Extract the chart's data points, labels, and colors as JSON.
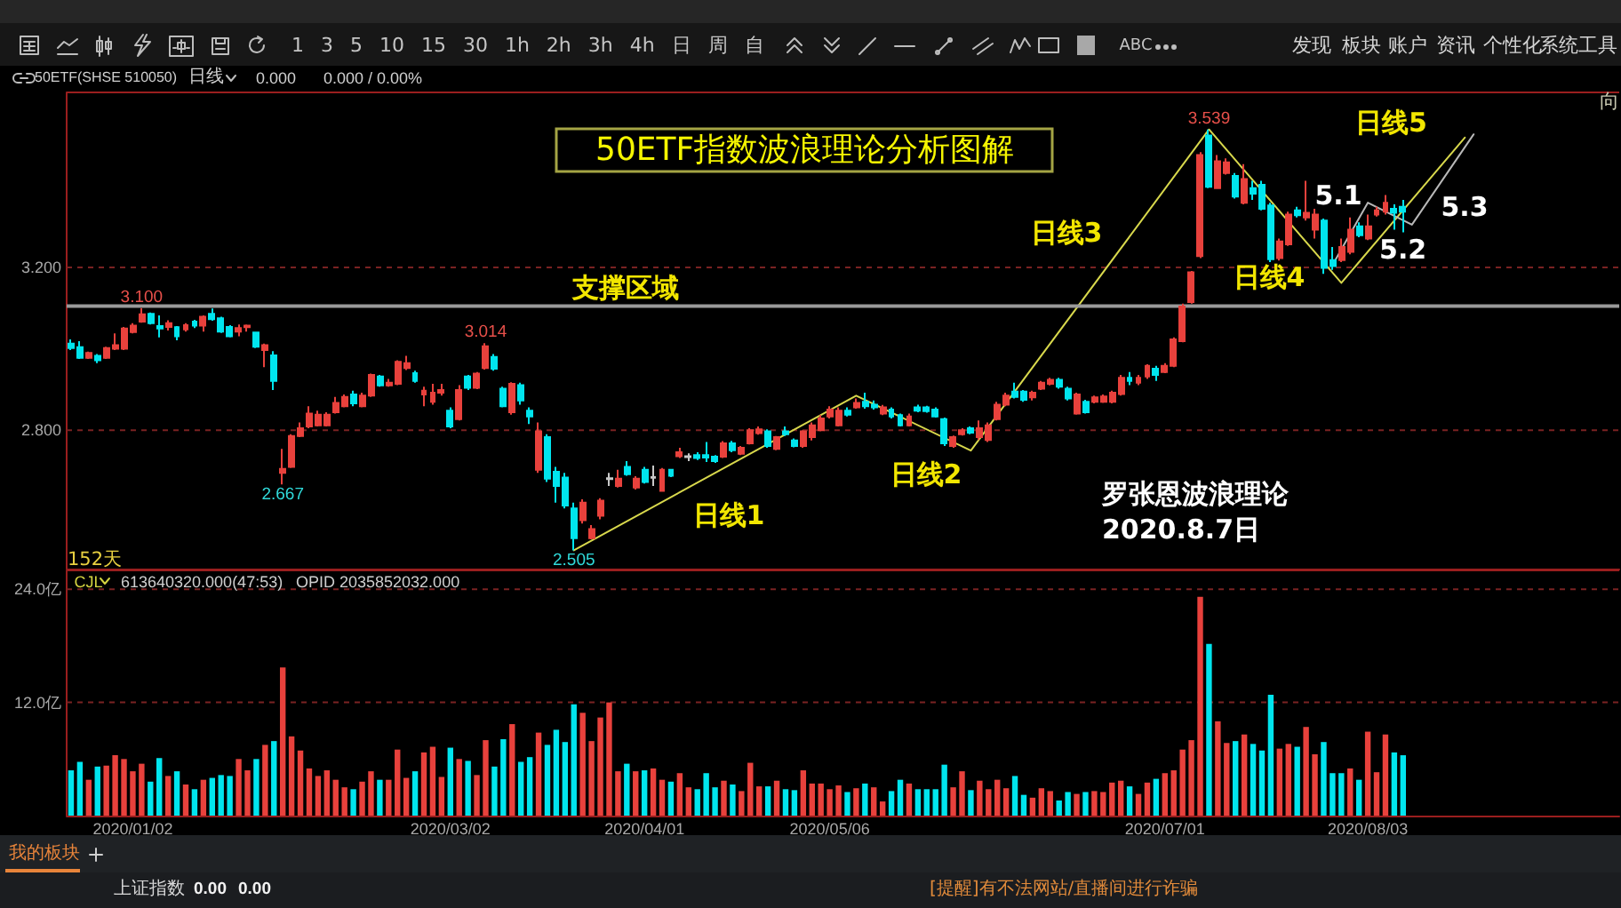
{
  "chart_data": [
    {
      "type": "candlestick",
      "title": "50ETF指数波浪理论分析图解",
      "categories": [
        null,
        null,
        null,
        null,
        null,
        null,
        null,
        "2020/01/02",
        null,
        null,
        null,
        null,
        null,
        null,
        null,
        null,
        null,
        null,
        null,
        null,
        null,
        null,
        null,
        null,
        null,
        null,
        null,
        null,
        null,
        null,
        null,
        null,
        null,
        null,
        null,
        null,
        null,
        null,
        null,
        null,
        null,
        null,
        null,
        "2020/03/02",
        null,
        null,
        null,
        null,
        null,
        null,
        null,
        null,
        null,
        null,
        null,
        null,
        null,
        null,
        null,
        null,
        null,
        null,
        null,
        null,
        null,
        "2020/04/01",
        null,
        null,
        null,
        null,
        null,
        null,
        null,
        null,
        null,
        null,
        null,
        null,
        null,
        null,
        null,
        null,
        null,
        null,
        null,
        null,
        "2020/05/06",
        null,
        null,
        null,
        null,
        null,
        null,
        null,
        null,
        null,
        null,
        null,
        null,
        null,
        null,
        null,
        null,
        null,
        null,
        null,
        null,
        null,
        null,
        null,
        null,
        null,
        null,
        null,
        null,
        null,
        null,
        null,
        null,
        null,
        null,
        null,
        null,
        null,
        "2020/07/01",
        null,
        null,
        null,
        null,
        null,
        null,
        null,
        null,
        null,
        null,
        null,
        null,
        null,
        null,
        null,
        null,
        null,
        null,
        null,
        null,
        null,
        null,
        "2020/08/03",
        null,
        null,
        null,
        null,
        null,
        null,
        null,
        null,
        null,
        null,
        null,
        null,
        null,
        null,
        null,
        null,
        null,
        null,
        null,
        null,
        null,
        null,
        null,
        null,
        null,
        null,
        null,
        null
      ],
      "ohlc": [
        [
          3.013,
          3.023,
          2.997,
          3.002
        ],
        [
          3.004,
          3.019,
          2.975,
          2.978
        ],
        [
          2.978,
          2.993,
          2.975,
          2.99
        ],
        [
          2.983,
          2.987,
          2.965,
          2.972
        ],
        [
          2.978,
          3.005,
          2.975,
          3.002
        ],
        [
          3.0,
          3.038,
          2.997,
          3.009
        ],
        [
          3.0,
          3.054,
          2.997,
          3.05
        ],
        [
          3.041,
          3.063,
          3.038,
          3.057
        ],
        [
          3.067,
          3.1,
          3.064,
          3.085
        ],
        [
          3.086,
          3.089,
          3.06,
          3.063
        ],
        [
          3.056,
          3.082,
          3.028,
          3.05
        ],
        [
          3.054,
          3.07,
          3.045,
          3.063
        ],
        [
          3.053,
          3.056,
          3.021,
          3.031
        ],
        [
          3.048,
          3.063,
          3.042,
          3.058
        ],
        [
          3.067,
          3.071,
          3.051,
          3.057
        ],
        [
          3.057,
          3.082,
          3.042,
          3.079
        ],
        [
          3.086,
          3.099,
          3.069,
          3.073
        ],
        [
          3.075,
          3.079,
          3.039,
          3.042
        ],
        [
          3.054,
          3.058,
          3.028,
          3.031
        ],
        [
          3.042,
          3.06,
          3.031,
          3.051
        ],
        [
          3.053,
          3.06,
          3.042,
          3.057
        ],
        [
          3.04,
          3.042,
          3.002,
          3.005
        ],
        [
          2.997,
          3.013,
          2.955,
          3.009
        ],
        [
          2.984,
          2.994,
          2.899,
          2.921
        ],
        [
          2.695,
          2.754,
          2.667,
          2.705
        ],
        [
          2.71,
          2.79,
          2.707,
          2.786
        ],
        [
          2.786,
          2.819,
          2.783,
          2.805
        ],
        [
          2.809,
          2.859,
          2.805,
          2.841
        ],
        [
          2.812,
          2.848,
          2.809,
          2.838
        ],
        [
          2.812,
          2.844,
          2.809,
          2.838
        ],
        [
          2.844,
          2.882,
          2.841,
          2.867
        ],
        [
          2.859,
          2.888,
          2.856,
          2.882
        ],
        [
          2.888,
          2.897,
          2.859,
          2.866
        ],
        [
          2.859,
          2.892,
          2.856,
          2.885
        ],
        [
          2.885,
          2.939,
          2.882,
          2.936
        ],
        [
          2.932,
          2.936,
          2.907,
          2.91
        ],
        [
          2.91,
          2.926,
          2.907,
          2.917
        ],
        [
          2.914,
          2.972,
          2.911,
          2.968
        ],
        [
          2.953,
          2.983,
          2.948,
          2.965
        ],
        [
          2.94,
          2.946,
          2.917,
          2.921
        ],
        [
          2.888,
          2.907,
          2.859,
          2.897
        ],
        [
          2.87,
          2.914,
          2.863,
          2.892
        ],
        [
          2.892,
          2.914,
          2.885,
          2.899
        ],
        [
          2.848,
          2.856,
          2.805,
          2.809
        ],
        [
          2.827,
          2.911,
          2.824,
          2.899
        ],
        [
          2.932,
          2.936,
          2.899,
          2.904
        ],
        [
          2.904,
          2.943,
          2.901,
          2.939
        ],
        [
          2.953,
          3.014,
          2.949,
          3.006
        ],
        [
          2.98,
          2.987,
          2.946,
          2.951
        ],
        [
          2.902,
          2.907,
          2.856,
          2.859
        ],
        [
          2.844,
          2.918,
          2.838,
          2.914
        ],
        [
          2.911,
          2.917,
          2.863,
          2.873
        ],
        [
          2.848,
          2.856,
          2.815,
          2.834
        ],
        [
          2.703,
          2.819,
          2.695,
          2.797
        ],
        [
          2.783,
          2.79,
          2.673,
          2.681
        ],
        [
          2.698,
          2.71,
          2.622,
          2.663
        ],
        [
          2.684,
          2.695,
          2.608,
          2.615
        ],
        [
          2.608,
          2.622,
          2.505,
          2.535
        ],
        [
          2.579,
          2.63,
          2.571,
          2.622
        ],
        [
          2.535,
          2.567,
          2.532,
          2.557
        ],
        [
          2.59,
          2.633,
          2.581,
          2.627
        ],
        [
          2.68,
          2.695,
          2.663,
          2.682
        ],
        [
          2.663,
          2.703,
          2.659,
          2.681
        ],
        [
          2.71,
          2.724,
          2.688,
          2.692
        ],
        [
          2.659,
          2.687,
          2.654,
          2.681
        ],
        [
          2.703,
          2.71,
          2.669,
          2.673
        ],
        [
          2.683,
          2.713,
          2.663,
          2.685
        ],
        [
          2.651,
          2.707,
          2.649,
          2.703
        ],
        [
          2.703,
          2.705,
          2.685,
          2.688
        ],
        [
          2.736,
          2.757,
          2.732,
          2.746
        ],
        [
          2.734,
          2.743,
          2.724,
          2.736
        ],
        [
          2.739,
          2.746,
          2.727,
          2.732
        ],
        [
          2.739,
          2.771,
          2.722,
          2.733
        ],
        [
          2.735,
          2.739,
          2.72,
          2.724
        ],
        [
          2.735,
          2.773,
          2.732,
          2.768
        ],
        [
          2.768,
          2.774,
          2.746,
          2.751
        ],
        [
          2.742,
          2.761,
          2.739,
          2.757
        ],
        [
          2.768,
          2.805,
          2.765,
          2.8
        ],
        [
          2.793,
          2.809,
          2.789,
          2.802
        ],
        [
          2.797,
          2.802,
          2.757,
          2.761
        ],
        [
          2.754,
          2.786,
          2.751,
          2.783
        ],
        [
          2.797,
          2.809,
          2.786,
          2.79
        ],
        [
          2.775,
          2.78,
          2.758,
          2.761
        ],
        [
          2.761,
          2.8,
          2.757,
          2.797
        ],
        [
          2.783,
          2.819,
          2.775,
          2.812
        ],
        [
          2.8,
          2.837,
          2.797,
          2.829
        ],
        [
          2.834,
          2.859,
          2.829,
          2.851
        ],
        [
          2.812,
          2.856,
          2.809,
          2.848
        ],
        [
          2.848,
          2.856,
          2.834,
          2.838
        ],
        [
          2.856,
          2.878,
          2.853,
          2.867
        ],
        [
          2.87,
          2.892,
          2.853,
          2.859
        ],
        [
          2.863,
          2.873,
          2.851,
          2.856
        ],
        [
          2.841,
          2.862,
          2.837,
          2.856
        ],
        [
          2.851,
          2.856,
          2.829,
          2.834
        ],
        [
          2.837,
          2.841,
          2.809,
          2.812
        ],
        [
          2.812,
          2.841,
          2.809,
          2.834
        ],
        [
          2.856,
          2.863,
          2.844,
          2.848
        ],
        [
          2.856,
          2.86,
          2.843,
          2.847
        ],
        [
          2.851,
          2.856,
          2.831,
          2.834
        ],
        [
          2.827,
          2.831,
          2.761,
          2.768
        ],
        [
          2.761,
          2.787,
          2.757,
          2.783
        ],
        [
          2.79,
          2.805,
          2.787,
          2.8
        ],
        [
          2.805,
          2.809,
          2.79,
          2.794
        ],
        [
          2.783,
          2.824,
          2.776,
          2.805
        ],
        [
          2.776,
          2.819,
          2.771,
          2.812
        ],
        [
          2.827,
          2.87,
          2.824,
          2.863
        ],
        [
          2.863,
          2.892,
          2.859,
          2.885
        ],
        [
          2.895,
          2.917,
          2.878,
          2.882
        ],
        [
          2.895,
          2.899,
          2.87,
          2.875
        ],
        [
          2.881,
          2.897,
          2.873,
          2.892
        ],
        [
          2.902,
          2.921,
          2.899,
          2.917
        ],
        [
          2.914,
          2.929,
          2.91,
          2.924
        ],
        [
          2.924,
          2.929,
          2.902,
          2.907
        ],
        [
          2.902,
          2.907,
          2.873,
          2.878
        ],
        [
          2.841,
          2.892,
          2.838,
          2.888
        ],
        [
          2.87,
          2.875,
          2.841,
          2.844
        ],
        [
          2.87,
          2.885,
          2.866,
          2.881
        ],
        [
          2.87,
          2.888,
          2.867,
          2.883
        ],
        [
          2.87,
          2.897,
          2.866,
          2.892
        ],
        [
          2.889,
          2.936,
          2.885,
          2.929
        ],
        [
          2.929,
          2.943,
          2.911,
          2.921
        ],
        [
          2.917,
          2.936,
          2.911,
          2.929
        ],
        [
          2.932,
          2.962,
          2.926,
          2.958
        ],
        [
          2.951,
          2.958,
          2.921,
          2.936
        ],
        [
          2.943,
          2.965,
          2.94,
          2.958
        ],
        [
          2.958,
          3.028,
          2.955,
          3.023
        ],
        [
          3.019,
          3.111,
          3.016,
          3.104
        ],
        [
          3.115,
          3.191,
          3.111,
          3.188
        ],
        [
          3.228,
          3.483,
          3.223,
          3.476
        ],
        [
          3.524,
          3.539,
          3.395,
          3.398
        ],
        [
          3.395,
          3.476,
          3.393,
          3.461
        ],
        [
          3.432,
          3.468,
          3.428,
          3.458
        ],
        [
          3.425,
          3.432,
          3.369,
          3.374
        ],
        [
          3.359,
          3.454,
          3.355,
          3.417
        ],
        [
          3.395,
          3.413,
          3.366,
          3.381
        ],
        [
          3.403,
          3.413,
          3.34,
          3.344
        ],
        [
          3.352,
          3.359,
          3.213,
          3.22
        ],
        [
          3.223,
          3.271,
          3.217,
          3.264
        ],
        [
          3.257,
          3.337,
          3.253,
          3.33
        ],
        [
          3.34,
          3.349,
          3.323,
          3.328
        ],
        [
          3.323,
          3.413,
          3.315,
          3.334
        ],
        [
          3.293,
          3.344,
          3.271,
          3.33
        ],
        [
          3.315,
          3.32,
          3.184,
          3.199
        ],
        [
          3.218,
          3.25,
          3.194,
          3.203
        ],
        [
          3.218,
          3.271,
          3.213,
          3.25
        ],
        [
          3.238,
          3.323,
          3.232,
          3.293
        ],
        [
          3.301,
          3.311,
          3.274,
          3.279
        ],
        [
          3.271,
          3.33,
          3.267,
          3.301
        ],
        [
          3.33,
          3.349,
          3.325,
          3.34
        ],
        [
          3.337,
          3.378,
          3.33,
          3.359
        ],
        [
          3.344,
          3.355,
          3.293,
          3.334
        ],
        [
          3.349,
          3.366,
          3.286,
          3.337
        ],
        null,
        null,
        null,
        null,
        null,
        null,
        null,
        null,
        null,
        null,
        null,
        null,
        null,
        null,
        null,
        null,
        null,
        null,
        null,
        null,
        null,
        null,
        null,
        null
      ],
      "colors": [
        "#00e5ee",
        "#00e5ee",
        "#e8413c",
        "#00e5ee",
        "#e8413c",
        "#e8413c",
        "#e8413c",
        "#e8413c",
        "#e8413c",
        "#00e5ee",
        "#00e5ee",
        "#e8413c",
        "#00e5ee",
        "#e8413c",
        "#00e5ee",
        "#e8413c",
        "#00e5ee",
        "#00e5ee",
        "#00e5ee",
        "#e8413c",
        "#e8413c",
        "#00e5ee",
        "#e8413c",
        "#00e5ee",
        "#e8413c",
        "#e8413c",
        "#e8413c",
        "#e8413c",
        "#e8413c",
        "#e8413c",
        "#e8413c",
        "#e8413c",
        "#00e5ee",
        "#e8413c",
        "#e8413c",
        "#00e5ee",
        "#e8413c",
        "#e8413c",
        "#e8413c",
        "#00e5ee",
        "#e8413c",
        "#e8413c",
        "#e8413c",
        "#00e5ee",
        "#e8413c",
        "#00e5ee",
        "#e8413c",
        "#e8413c",
        "#00e5ee",
        "#00e5ee",
        "#e8413c",
        "#00e5ee",
        "#00e5ee",
        "#e8413c",
        "#00e5ee",
        "#00e5ee",
        "#00e5ee",
        "#00e5ee",
        "#e8413c",
        "#e8413c",
        "#e8413c",
        "#c8c8c8",
        "#e8413c",
        "#00e5ee",
        "#e8413c",
        "#00e5ee",
        "#c8c8c8",
        "#e8413c",
        "#00e5ee",
        "#e8413c",
        "#c8c8c8",
        "#00e5ee",
        "#00e5ee",
        "#00e5ee",
        "#e8413c",
        "#00e5ee",
        "#e8413c",
        "#e8413c",
        "#e8413c",
        "#00e5ee",
        "#e8413c",
        "#00e5ee",
        "#00e5ee",
        "#e8413c",
        "#e8413c",
        "#e8413c",
        "#e8413c",
        "#e8413c",
        "#00e5ee",
        "#e8413c",
        "#00e5ee",
        "#00e5ee",
        "#e8413c",
        "#00e5ee",
        "#00e5ee",
        "#e8413c",
        "#00e5ee",
        "#00e5ee",
        "#00e5ee",
        "#00e5ee",
        "#e8413c",
        "#e8413c",
        "#00e5ee",
        "#e8413c",
        "#e8413c",
        "#e8413c",
        "#e8413c",
        "#00e5ee",
        "#00e5ee",
        "#e8413c",
        "#e8413c",
        "#e8413c",
        "#00e5ee",
        "#00e5ee",
        "#e8413c",
        "#00e5ee",
        "#e8413c",
        "#e8413c",
        "#e8413c",
        "#e8413c",
        "#00e5ee",
        "#e8413c",
        "#e8413c",
        "#00e5ee",
        "#e8413c",
        "#e8413c",
        "#e8413c",
        "#e8413c",
        "#e8413c",
        "#00e5ee",
        "#e8413c",
        "#e8413c",
        "#00e5ee",
        "#e8413c",
        "#00e5ee",
        "#00e5ee",
        "#00e5ee",
        "#e8413c",
        "#e8413c",
        "#00e5ee",
        "#e8413c",
        "#e8413c",
        "#00e5ee",
        "#00e5ee",
        "#e8413c",
        "#e8413c",
        "#00e5ee",
        "#e8413c",
        "#e8413c",
        "#e8413c",
        "#00e5ee",
        "#00e5ee",
        null,
        null,
        null,
        null,
        null,
        null,
        null,
        null,
        null,
        null,
        null,
        null,
        null,
        null,
        null,
        null,
        null,
        null,
        null,
        null,
        null,
        null,
        null,
        null
      ],
      "series": [
        {
          "type": "line",
          "color": "#d8d84c",
          "values": [
            null,
            null,
            null,
            null,
            null,
            null,
            null,
            null,
            null,
            null,
            null,
            null,
            null,
            null,
            null,
            null,
            null,
            null,
            null,
            null,
            null,
            null,
            null,
            null,
            null,
            null,
            null,
            null,
            null,
            null,
            null,
            null,
            null,
            null,
            null,
            null,
            null,
            null,
            null,
            null,
            null,
            null,
            null,
            null,
            null,
            null,
            null,
            null,
            null,
            null,
            null,
            null,
            null,
            null,
            null,
            null,
            null,
            2.505,
            null,
            null,
            null,
            null,
            null,
            null,
            null,
            null,
            null,
            null,
            null,
            null,
            null,
            null,
            null,
            null,
            null,
            null,
            null,
            null,
            null,
            null,
            null,
            null,
            null,
            null,
            null,
            null,
            null,
            null,
            null,
            2.885,
            null,
            null,
            null,
            null,
            null,
            null,
            null,
            null,
            null,
            null,
            null,
            null,
            2.75,
            null,
            null,
            null,
            null,
            null,
            null,
            null,
            null,
            null,
            null,
            null,
            null,
            null,
            null,
            null,
            null,
            null,
            null,
            null,
            null,
            null,
            null,
            null,
            null,
            null,
            null,
            3.539,
            null,
            null,
            null,
            null,
            null,
            null,
            null,
            null,
            null,
            null,
            null,
            null,
            null,
            null,
            3.162,
            null,
            null,
            null,
            null,
            null,
            null,
            null,
            null,
            null,
            null,
            null,
            null,
            null,
            3.519,
            null,
            null,
            null,
            null,
            null,
            null,
            null,
            null,
            null,
            null,
            null,
            null,
            null,
            null,
            null,
            null,
            null
          ]
        },
        {
          "type": "line",
          "color": "#b8b8b8",
          "values": [
            null,
            null,
            null,
            null,
            null,
            null,
            null,
            null,
            null,
            null,
            null,
            null,
            null,
            null,
            null,
            null,
            null,
            null,
            null,
            null,
            null,
            null,
            null,
            null,
            null,
            null,
            null,
            null,
            null,
            null,
            null,
            null,
            null,
            null,
            null,
            null,
            null,
            null,
            null,
            null,
            null,
            null,
            null,
            null,
            null,
            null,
            null,
            null,
            null,
            null,
            null,
            null,
            null,
            null,
            null,
            null,
            null,
            null,
            null,
            null,
            null,
            null,
            null,
            null,
            null,
            null,
            null,
            null,
            null,
            null,
            null,
            null,
            null,
            null,
            null,
            null,
            null,
            null,
            null,
            null,
            null,
            null,
            null,
            null,
            null,
            null,
            null,
            null,
            null,
            null,
            null,
            null,
            null,
            null,
            null,
            null,
            null,
            null,
            null,
            null,
            null,
            null,
            null,
            null,
            null,
            null,
            null,
            null,
            null,
            null,
            null,
            null,
            null,
            null,
            null,
            null,
            null,
            null,
            null,
            null,
            null,
            null,
            null,
            null,
            null,
            null,
            null,
            null,
            null,
            null,
            null,
            null,
            null,
            null,
            null,
            null,
            null,
            null,
            null,
            null,
            null,
            null,
            null,
            3.206,
            null,
            null,
            null,
            3.359,
            null,
            null,
            null,
            null,
            3.305,
            null,
            null,
            null,
            null,
            null,
            null,
            3.527,
            null,
            null,
            null,
            null,
            null,
            null,
            null,
            null,
            null,
            null,
            null,
            null,
            null,
            null,
            null,
            null
          ]
        }
      ],
      "ylim": [
        2.46,
        3.63
      ],
      "yticks": [
        {
          "value": 2.8,
          "label": "2.800"
        },
        {
          "value": 3.2,
          "label": "3.200"
        }
      ],
      "tick_labels": "y",
      "grid": "y",
      "ref_lines": [
        {
          "axis": "y",
          "value": 3.105,
          "label": "支撑区域",
          "color": "#9a9a9a"
        }
      ],
      "annotations": [
        {
          "text": "3.100",
          "y": 3.1
        },
        {
          "text": "2.667",
          "y": 2.667
        },
        {
          "text": "3.014",
          "y": 3.014
        },
        {
          "text": "2.505",
          "y": 2.505
        },
        {
          "text": "3.539",
          "y": 3.539
        },
        "日线1",
        "日线2",
        "日线3",
        "日线4",
        "日线5",
        "5.1",
        "5.2",
        "5.3",
        "罗张恩波浪理论",
        "2020.8.7日",
        "152天",
        "向"
      ]
    },
    {
      "type": "bar",
      "categories": [
        null,
        null,
        null,
        null,
        null,
        null,
        null,
        "2020/01/02",
        null,
        null,
        null,
        null,
        null,
        null,
        null,
        null,
        null,
        null,
        null,
        null,
        null,
        null,
        null,
        null,
        null,
        null,
        null,
        null,
        null,
        null,
        null,
        null,
        null,
        null,
        null,
        null,
        null,
        null,
        null,
        null,
        null,
        null,
        null,
        "2020/03/02",
        null,
        null,
        null,
        null,
        null,
        null,
        null,
        null,
        null,
        null,
        null,
        null,
        null,
        null,
        null,
        null,
        null,
        null,
        null,
        null,
        null,
        "2020/04/01",
        null,
        null,
        null,
        null,
        null,
        null,
        null,
        null,
        null,
        null,
        null,
        null,
        null,
        null,
        null,
        null,
        null,
        null,
        null,
        null,
        "2020/05/06",
        null,
        null,
        null,
        null,
        null,
        null,
        null,
        null,
        null,
        null,
        null,
        null,
        null,
        null,
        null,
        null,
        null,
        null,
        null,
        null,
        null,
        null,
        null,
        null,
        null,
        null,
        null,
        null,
        null,
        null,
        null,
        null,
        null,
        null,
        null,
        null,
        null,
        "2020/07/01",
        null,
        null,
        null,
        null,
        null,
        null,
        null,
        null,
        null,
        null,
        null,
        null,
        null,
        null,
        null,
        null,
        null,
        null,
        null,
        null,
        null,
        null,
        "2020/08/03",
        null,
        null,
        null,
        null,
        null,
        null,
        null,
        null,
        null,
        null,
        null,
        null,
        null,
        null,
        null,
        null,
        null,
        null,
        null,
        null,
        null,
        null,
        null,
        null,
        null,
        null,
        null,
        null
      ],
      "values": [
        4.8,
        5.7,
        3.8,
        5.2,
        5.3,
        6.4,
        6.0,
        4.7,
        5.5,
        3.6,
        6.1,
        4.2,
        4.7,
        3.3,
        2.8,
        3.8,
        4.0,
        4.3,
        4.2,
        6.0,
        4.8,
        6.0,
        7.5,
        7.9,
        15.7,
        8.4,
        6.9,
        5.0,
        4.2,
        4.8,
        3.8,
        3.0,
        2.8,
        3.6,
        4.7,
        3.8,
        3.8,
        7.0,
        4.0,
        4.7,
        6.7,
        7.3,
        4.1,
        7.2,
        6.0,
        5.8,
        4.3,
        8.0,
        5.2,
        8.1,
        9.7,
        5.7,
        6.2,
        8.8,
        7.5,
        9.1,
        7.8,
        11.8,
        10.9,
        7.9,
        10.4,
        12.0,
        4.7,
        5.5,
        4.7,
        4.8,
        5.0,
        3.8,
        3.6,
        4.5,
        3.0,
        2.8,
        4.5,
        3.0,
        3.7,
        3.3,
        2.6,
        5.6,
        3.1,
        3.1,
        3.7,
        2.8,
        2.7,
        4.8,
        3.4,
        3.4,
        2.8,
        3.2,
        2.5,
        2.9,
        3.4,
        3.0,
        1.5,
        2.6,
        3.8,
        3.4,
        2.8,
        2.8,
        2.8,
        5.4,
        3.0,
        4.7,
        2.7,
        3.7,
        2.8,
        3.8,
        2.9,
        4.2,
        2.2,
        1.9,
        2.9,
        2.6,
        1.6,
        2.5,
        2.3,
        2.5,
        2.6,
        2.5,
        3.5,
        3.7,
        3.1,
        2.3,
        3.5,
        3.9,
        4.5,
        4.8,
        7.0,
        8.0,
        23.2,
        18.2,
        10.0,
        7.7,
        7.9,
        8.6,
        7.6,
        6.9,
        12.8,
        7.1,
        7.6,
        7.3,
        9.4,
        6.5,
        7.8,
        4.5,
        4.5,
        5.0,
        3.8,
        8.9,
        4.6,
        8.6,
        6.7,
        6.4,
        null,
        null,
        null,
        null,
        null,
        null,
        null,
        null,
        null,
        null,
        null,
        null,
        null,
        null,
        null,
        null,
        null,
        null,
        null,
        null,
        null,
        null,
        null,
        null
      ],
      "colors": [
        "#00e5ee",
        "#00e5ee",
        "#e8413c",
        "#00e5ee",
        "#e8413c",
        "#e8413c",
        "#e8413c",
        "#e8413c",
        "#e8413c",
        "#00e5ee",
        "#00e5ee",
        "#e8413c",
        "#00e5ee",
        "#e8413c",
        "#00e5ee",
        "#e8413c",
        "#00e5ee",
        "#00e5ee",
        "#00e5ee",
        "#e8413c",
        "#e8413c",
        "#00e5ee",
        "#e8413c",
        "#00e5ee",
        "#e8413c",
        "#e8413c",
        "#e8413c",
        "#e8413c",
        "#e8413c",
        "#e8413c",
        "#e8413c",
        "#e8413c",
        "#00e5ee",
        "#e8413c",
        "#e8413c",
        "#00e5ee",
        "#e8413c",
        "#e8413c",
        "#e8413c",
        "#00e5ee",
        "#e8413c",
        "#e8413c",
        "#e8413c",
        "#00e5ee",
        "#e8413c",
        "#00e5ee",
        "#e8413c",
        "#e8413c",
        "#00e5ee",
        "#00e5ee",
        "#e8413c",
        "#00e5ee",
        "#00e5ee",
        "#e8413c",
        "#00e5ee",
        "#00e5ee",
        "#00e5ee",
        "#00e5ee",
        "#e8413c",
        "#e8413c",
        "#e8413c",
        "#e8413c",
        "#e8413c",
        "#00e5ee",
        "#e8413c",
        "#00e5ee",
        "#e8413c",
        "#e8413c",
        "#00e5ee",
        "#e8413c",
        "#e8413c",
        "#00e5ee",
        "#00e5ee",
        "#00e5ee",
        "#e8413c",
        "#00e5ee",
        "#e8413c",
        "#e8413c",
        "#e8413c",
        "#00e5ee",
        "#e8413c",
        "#00e5ee",
        "#00e5ee",
        "#e8413c",
        "#e8413c",
        "#e8413c",
        "#e8413c",
        "#e8413c",
        "#00e5ee",
        "#e8413c",
        "#00e5ee",
        "#e8413c",
        "#e8413c",
        "#00e5ee",
        "#00e5ee",
        "#e8413c",
        "#00e5ee",
        "#00e5ee",
        "#00e5ee",
        "#00e5ee",
        "#e8413c",
        "#e8413c",
        "#00e5ee",
        "#e8413c",
        "#e8413c",
        "#e8413c",
        "#e8413c",
        "#00e5ee",
        "#00e5ee",
        "#e8413c",
        "#e8413c",
        "#e8413c",
        "#00e5ee",
        "#00e5ee",
        "#e8413c",
        "#00e5ee",
        "#e8413c",
        "#e8413c",
        "#e8413c",
        "#e8413c",
        "#00e5ee",
        "#e8413c",
        "#e8413c",
        "#00e5ee",
        "#e8413c",
        "#e8413c",
        "#e8413c",
        "#e8413c",
        "#e8413c",
        "#00e5ee",
        "#e8413c",
        "#e8413c",
        "#00e5ee",
        "#e8413c",
        "#00e5ee",
        "#00e5ee",
        "#00e5ee",
        "#e8413c",
        "#e8413c",
        "#00e5ee",
        "#e8413c",
        "#e8413c",
        "#00e5ee",
        "#00e5ee",
        "#00e5ee",
        "#e8413c",
        "#00e5ee",
        "#e8413c",
        "#e8413c",
        "#e8413c",
        "#00e5ee",
        "#00e5ee",
        null,
        null,
        null,
        null,
        null,
        null,
        null,
        null,
        null,
        null,
        null,
        null,
        null,
        null,
        null,
        null,
        null,
        null,
        null,
        null,
        null,
        null,
        null,
        null
      ],
      "ylim": [
        0,
        26
      ],
      "yticks": [
        {
          "value": 12,
          "label": "12.0亿"
        },
        {
          "value": 24,
          "label": "24.0亿"
        }
      ],
      "grid": "y",
      "annotations": [
        "CJL",
        "613640320.000(47:53)",
        "OPID 2035852032.000"
      ]
    },
    {
      "type": "other",
      "annotations": [
        "1 3 5 10 15 30 1h 2h 3h 4h 日 周 自",
        "ABC",
        "发现",
        "板块",
        "账户",
        "资讯",
        "个性化",
        "系统工具",
        "50ETF(SHSE 510050)",
        "日线",
        "0.000",
        "0.000 / 0.00%"
      ]
    },
    {
      "type": "other",
      "annotations": [
        "我的板块",
        "上证指数",
        "0.00",
        "0.00",
        "[提醒]有不法网站/直播间进行诈骗"
      ]
    }
  ]
}
